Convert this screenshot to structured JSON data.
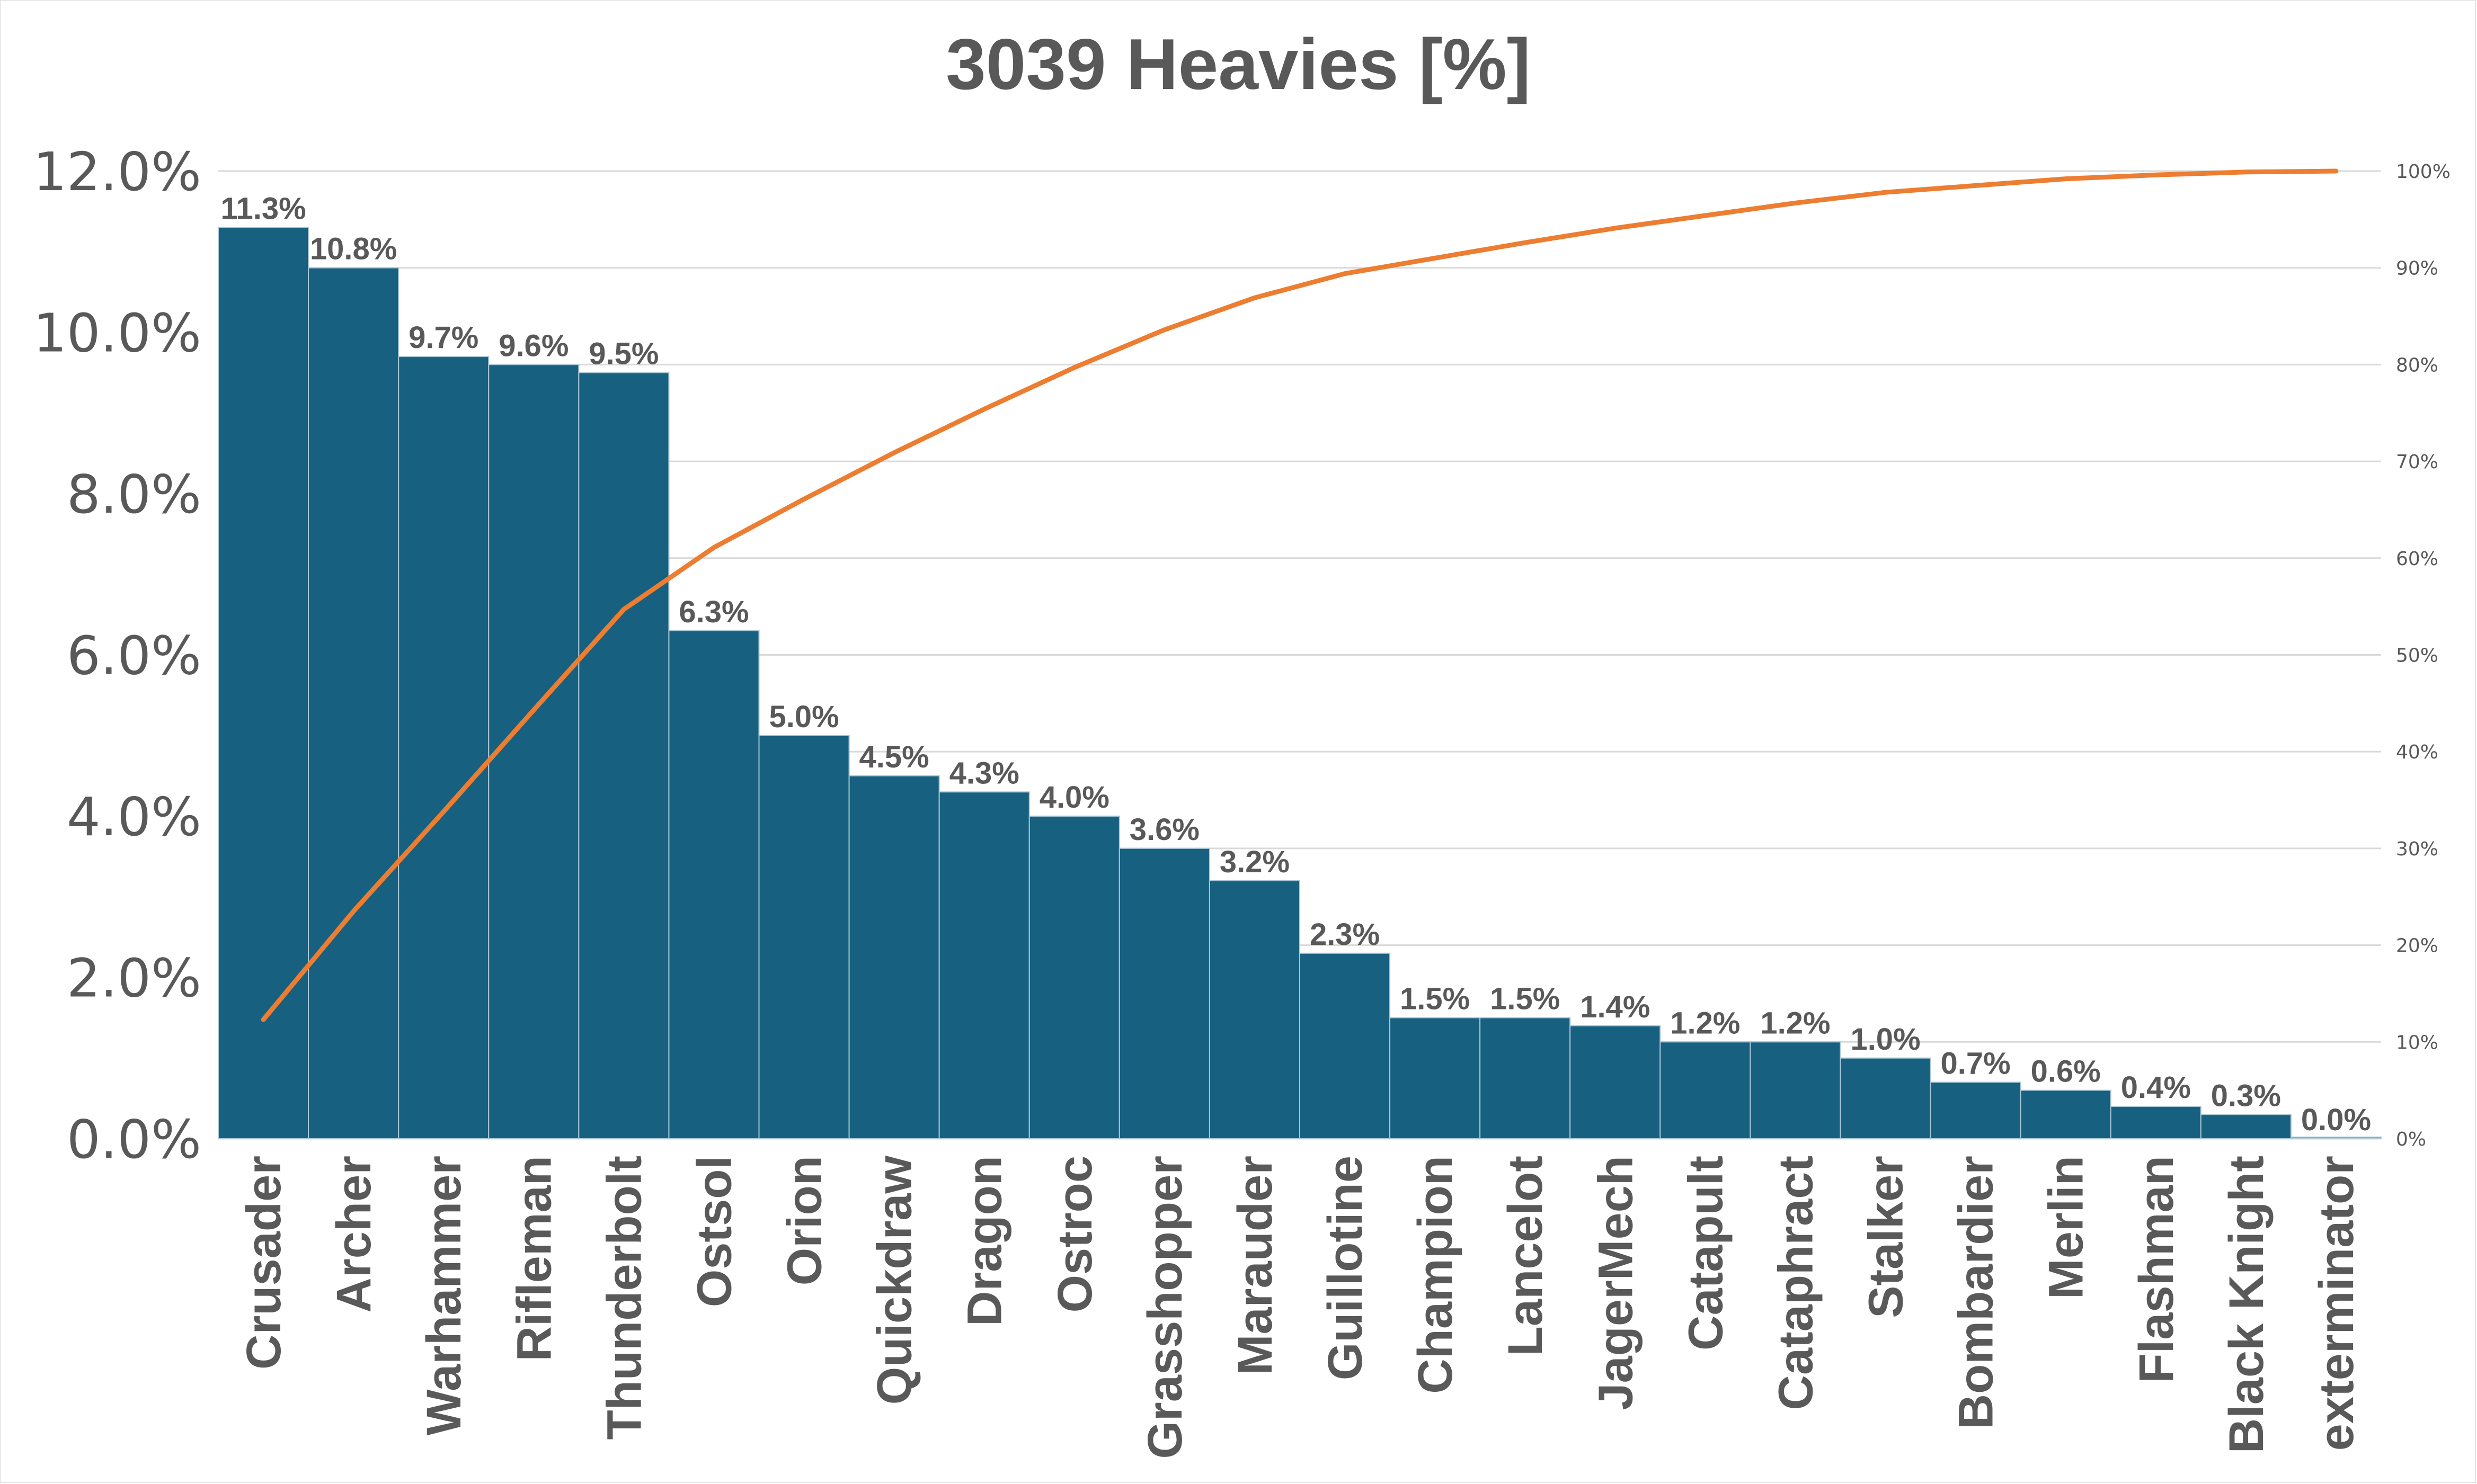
{
  "chart_data": {
    "type": "bar",
    "title": "3039 Heavies [%]",
    "categories": [
      "Crusader",
      "Archer",
      "Warhammer",
      "Rifleman",
      "Thunderbolt",
      "Ostsol",
      "Orion",
      "Quickdraw",
      "Dragon",
      "Ostroc",
      "Grasshopper",
      "Marauder",
      "Guillotine",
      "Champion",
      "Lancelot",
      "JagerMech",
      "Catapult",
      "Cataphract",
      "Stalker",
      "Bombardier",
      "Merlin",
      "Flashman",
      "Black Knight",
      "exterminator"
    ],
    "series": [
      {
        "type": "bar",
        "values": [
          11.3,
          10.8,
          9.7,
          9.6,
          9.5,
          6.3,
          5.0,
          4.5,
          4.3,
          4.0,
          3.6,
          3.2,
          2.3,
          1.5,
          1.5,
          1.4,
          1.2,
          1.2,
          1.0,
          0.7,
          0.6,
          0.4,
          0.3,
          0.0
        ],
        "data_labels": [
          "11.3%",
          "10.8%",
          "9.7%",
          "9.6%",
          "9.5%",
          "6.3%",
          "5.0%",
          "4.5%",
          "4.3%",
          "4.0%",
          "3.6%",
          "3.2%",
          "2.3%",
          "1.5%",
          "1.5%",
          "1.4%",
          "1.2%",
          "1.2%",
          "1.0%",
          "0.7%",
          "0.6%",
          "0.4%",
          "0.3%",
          "0.0%"
        ],
        "color": "#17607f"
      },
      {
        "type": "line",
        "axis": "right",
        "values": [
          12.3,
          23.5,
          33.8,
          44.3,
          54.7,
          61.1,
          66.1,
          70.9,
          75.4,
          79.7,
          83.6,
          86.9,
          89.4,
          91.0,
          92.6,
          94.1,
          95.4,
          96.7,
          97.8,
          98.5,
          99.2,
          99.6,
          99.9,
          100.0
        ],
        "color": "#ed7d31"
      }
    ],
    "y_left": {
      "ylim": [
        0,
        12
      ],
      "ticks": [
        "0.0%",
        "2.0%",
        "4.0%",
        "6.0%",
        "8.0%",
        "10.0%",
        "12.0%"
      ]
    },
    "y_right": {
      "ylim": [
        0,
        100
      ],
      "ticks": [
        "0%",
        "10%",
        "20%",
        "30%",
        "40%",
        "50%",
        "60%",
        "70%",
        "80%",
        "90%",
        "100%"
      ]
    },
    "grid": true,
    "legend": "none"
  }
}
